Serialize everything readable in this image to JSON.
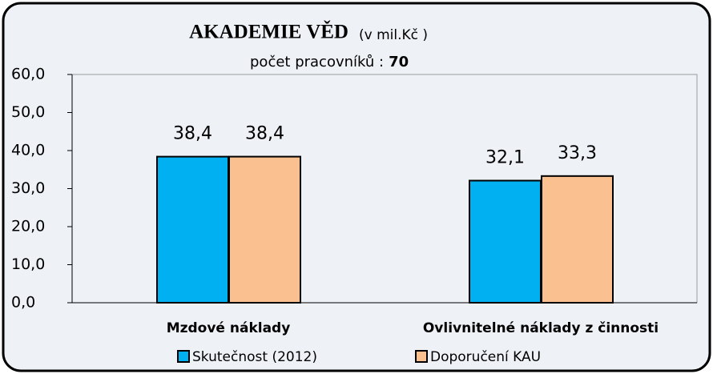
{
  "chart_data": {
    "type": "bar",
    "title": "AKADEMIE VĚD",
    "title_unit": "(v mil.Kč )",
    "subtitle": "počet pracovníků :",
    "subtitle_value": "70",
    "categories": [
      "Mzdové náklady",
      "Ovlivnitelné náklady z činnosti"
    ],
    "series": [
      {
        "name": "Skutečnost (2012)",
        "color": "#00b0f0",
        "values": [
          38.4,
          32.1
        ],
        "value_labels": [
          "38,4",
          "32,1"
        ]
      },
      {
        "name": "Doporučení KAU",
        "color": "#fac090",
        "values": [
          38.4,
          33.3
        ],
        "value_labels": [
          "38,4",
          "33,3"
        ]
      }
    ],
    "ylim": [
      0,
      60
    ],
    "yticks": [
      {
        "value": 0,
        "label": "0,0"
      },
      {
        "value": 10,
        "label": "10,0"
      },
      {
        "value": 20,
        "label": "20,0"
      },
      {
        "value": 30,
        "label": "30,0"
      },
      {
        "value": 40,
        "label": "40,0"
      },
      {
        "value": 50,
        "label": "50,0"
      },
      {
        "value": 60,
        "label": "60,0"
      }
    ],
    "legend": "bottom"
  }
}
